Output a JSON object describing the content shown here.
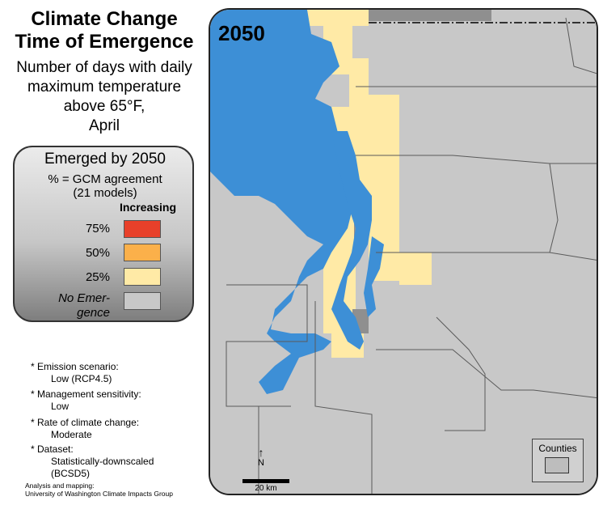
{
  "title": {
    "line1": "Climate Change",
    "line2": "Time of Emergence"
  },
  "subtitle": {
    "line1": "Number of days with daily",
    "line2": "maximum temperature",
    "line3": "above 65°F,",
    "line4": "April"
  },
  "legend": {
    "heading": "Emerged by 2050",
    "sub1": "% = GCM agreement",
    "sub2": "(21 models)",
    "direction": "Increasing",
    "classes": [
      {
        "label": "75%",
        "color": "#e8402a"
      },
      {
        "label": "50%",
        "color": "#fbb04a"
      },
      {
        "label": "25%",
        "color": "#ffeaa6"
      }
    ],
    "no_emergence": {
      "line1": "No Emer-",
      "line2": "gence",
      "color": "#c8c8c8"
    }
  },
  "notes": [
    {
      "bullet": "*",
      "label": "Emission scenario:",
      "value": "Low (RCP4.5)"
    },
    {
      "bullet": "*",
      "label": "Management sensitivity:",
      "value": "Low"
    },
    {
      "bullet": "*",
      "label": "Rate of climate change:",
      "value": "Moderate"
    },
    {
      "bullet": "*",
      "label": "Dataset:",
      "value1": "Statistically-downscaled",
      "value2": "(BCSD5)"
    }
  ],
  "credit": {
    "line1": "Analysis and mapping:",
    "line2": "University of Washington Climate Impacts Group"
  },
  "map": {
    "year_label": "2050",
    "north_label": "N",
    "scale_label": "20 km",
    "counties_label": "Counties",
    "colors": {
      "land": "#c8c8c8",
      "water": "#3d8fd6",
      "canada": "#8f8f8f",
      "emerged_25": "#ffeaa6",
      "county_line": "#5a5a5a"
    }
  }
}
